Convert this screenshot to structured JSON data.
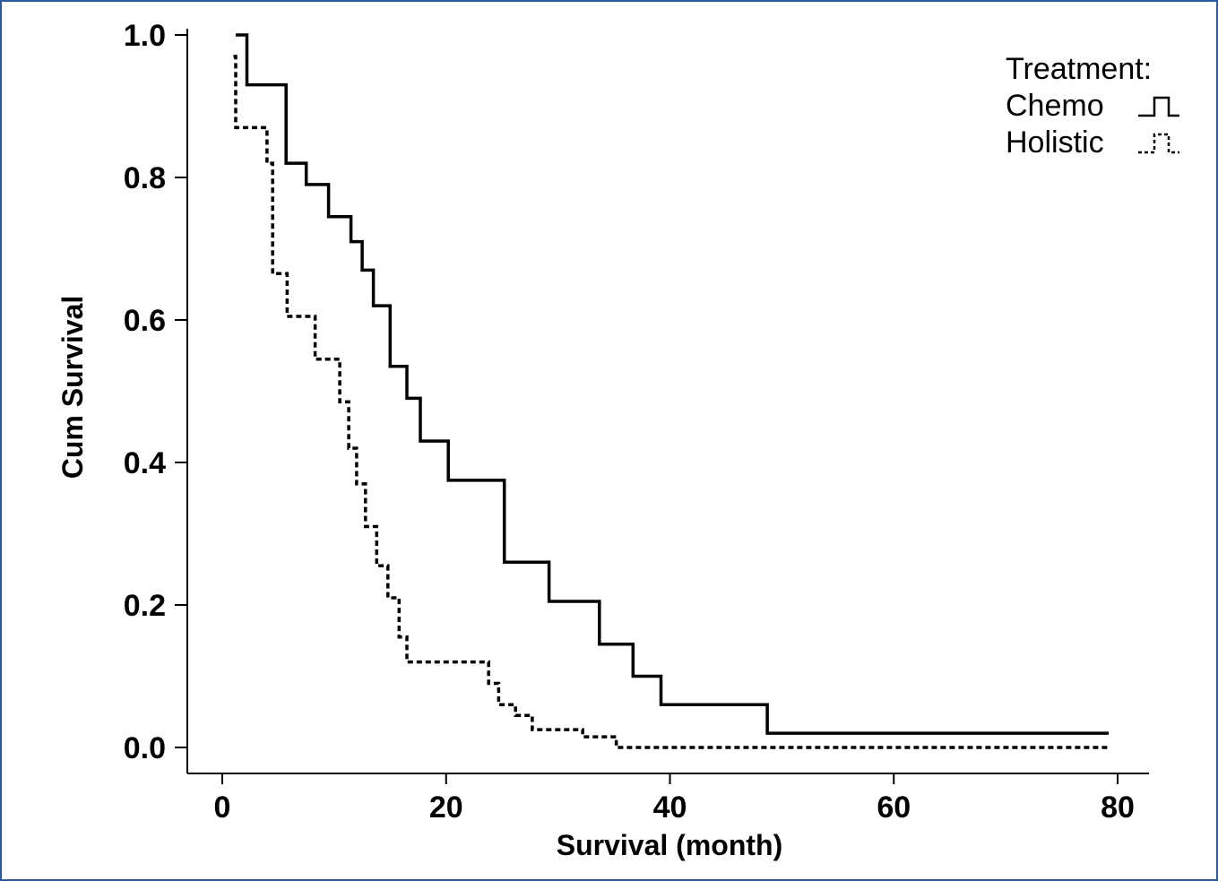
{
  "chart_data": {
    "type": "line",
    "subtype": "kaplan-meier-step",
    "title": "",
    "xlabel": "Survival (month)",
    "ylabel": "Cum Survival",
    "xlim": [
      0,
      80
    ],
    "ylim": [
      0,
      1
    ],
    "x_ticks": [
      0,
      20,
      40,
      60,
      80
    ],
    "x_tick_labels": [
      "0",
      "20",
      "40",
      "60",
      "80"
    ],
    "y_ticks": [
      0,
      0.2,
      0.4,
      0.6,
      0.8,
      1.0
    ],
    "y_tick_labels": [
      "0.0",
      "0.2",
      "0.4",
      "0.6",
      "0.8",
      "1.0"
    ],
    "grid": false,
    "legend": {
      "title": "Treatment:",
      "placement": "top-right"
    },
    "series": [
      {
        "name": "Chemo",
        "line_style": "solid",
        "color": "#000000",
        "x": [
          1.2,
          2.2,
          5.7,
          7.5,
          9.5,
          11.5,
          12.5,
          13.5,
          15.0,
          16.5,
          17.7,
          20.2,
          25.2,
          29.2,
          33.7,
          36.7,
          39.2,
          48.7,
          79.2
        ],
        "y": [
          1.0,
          0.93,
          0.82,
          0.79,
          0.745,
          0.71,
          0.67,
          0.62,
          0.535,
          0.49,
          0.43,
          0.375,
          0.26,
          0.205,
          0.145,
          0.1,
          0.06,
          0.02,
          0.02
        ]
      },
      {
        "name": "Holistic",
        "line_style": "dashed",
        "color": "#000000",
        "x": [
          1.0,
          1.2,
          4.0,
          4.5,
          5.8,
          8.3,
          10.5,
          11.3,
          12.0,
          12.8,
          13.8,
          14.8,
          15.8,
          16.5,
          18.8,
          23.8,
          24.7,
          26.2,
          27.7,
          32.2,
          35.2,
          79.2
        ],
        "y": [
          0.97,
          0.87,
          0.82,
          0.665,
          0.605,
          0.545,
          0.485,
          0.42,
          0.37,
          0.31,
          0.255,
          0.21,
          0.155,
          0.12,
          0.12,
          0.09,
          0.06,
          0.045,
          0.025,
          0.015,
          0.0,
          0.0
        ]
      }
    ]
  }
}
